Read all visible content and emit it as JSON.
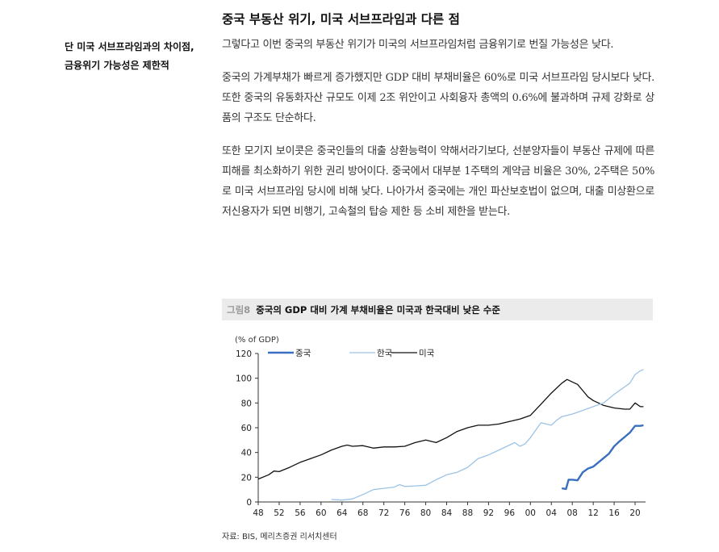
{
  "sidebar": {
    "lines": [
      "단 미국 서브프라임과의 차이점,",
      "금융위기 가능성은 제한적"
    ]
  },
  "main": {
    "title": "중국 부동산 위기, 미국 서브프라임과 다른 점",
    "paragraphs": [
      "그렇다고 이번 중국의 부동산 위기가 미국의 서브프라임처럼 금융위기로 번질 가능성은 낮다.",
      "중국의 가계부채가 빠르게 증가했지만 GDP 대비 부채비율은 60%로 미국 서브프라임 당시보다 낮다. 또한 중국의 유동화자산 규모도 이제 2조 위안이고 사회융자 총액의 0.6%에 불과하며 규제 강화로 상품의 구조도 단순하다.",
      "또한 모기지 보이콧은 중국인들의 대출 상환능력이 약해서라기보다, 선분양자들이 부동산 규제에 따른 피해를 최소화하기 위한 권리 방어이다. 중국에서 대부분 1주택의 계약금 비율은 30%, 2주택은 50%로 미국 서브프라임 당시에 비해 낮다. 나아가서 중국에는 개인 파산보호법이 없으며, 대출 미상환으로 저신용자가 되면 비행기, 고속철의 탑승 제한 등 소비 제한을 받는다."
    ]
  },
  "figure": {
    "label": "그림8",
    "title": "중국의 GDP 대비 가계 부채비율은 미국과 한국대비 낮은 수준",
    "source": "자료: BIS, 메리츠증권 리서치센터"
  },
  "chart_data": {
    "type": "line",
    "ylabel": "(% of GDP)",
    "ylim": [
      0,
      120
    ],
    "yticks": [
      0,
      20,
      40,
      60,
      80,
      100,
      120
    ],
    "xlim": [
      1948,
      2022
    ],
    "xticks": [
      1948,
      1952,
      1956,
      1960,
      1964,
      1968,
      1972,
      1976,
      1980,
      1984,
      1988,
      1992,
      1996,
      2000,
      2004,
      2008,
      2012,
      2016,
      2020
    ],
    "xtick_labels": [
      "48",
      "52",
      "56",
      "60",
      "64",
      "68",
      "72",
      "76",
      "80",
      "84",
      "88",
      "92",
      "96",
      "00",
      "04",
      "08",
      "12",
      "16",
      "20"
    ],
    "legend_position": "top-left",
    "series": [
      {
        "name": "중국",
        "color": "#3a6fc0",
        "points": [
          [
            2006,
            11
          ],
          [
            2006.8,
            10.5
          ],
          [
            2007.3,
            18
          ],
          [
            2008,
            18
          ],
          [
            2009,
            17.5
          ],
          [
            2010,
            24
          ],
          [
            2011,
            27
          ],
          [
            2012,
            28.5
          ],
          [
            2013,
            32
          ],
          [
            2014,
            35.5
          ],
          [
            2015,
            39
          ],
          [
            2016,
            45
          ],
          [
            2017,
            49
          ],
          [
            2018,
            52.5
          ],
          [
            2019,
            56
          ],
          [
            2020,
            61.5
          ],
          [
            2021,
            61.5
          ],
          [
            2021.6,
            62
          ]
        ]
      },
      {
        "name": "한국",
        "color": "#9cc3e6",
        "points": [
          [
            1962,
            2
          ],
          [
            1964,
            1.5
          ],
          [
            1966,
            2.5
          ],
          [
            1968,
            6
          ],
          [
            1970,
            10
          ],
          [
            1972,
            11
          ],
          [
            1974,
            12
          ],
          [
            1975,
            14
          ],
          [
            1976,
            12.5
          ],
          [
            1978,
            13
          ],
          [
            1980,
            13.5
          ],
          [
            1982,
            18
          ],
          [
            1984,
            22
          ],
          [
            1986,
            24
          ],
          [
            1988,
            28
          ],
          [
            1990,
            35
          ],
          [
            1992,
            38
          ],
          [
            1994,
            42
          ],
          [
            1996,
            46
          ],
          [
            1997,
            48
          ],
          [
            1998,
            45
          ],
          [
            1999,
            47
          ],
          [
            2000,
            52
          ],
          [
            2001,
            58
          ],
          [
            2002,
            64
          ],
          [
            2003,
            63
          ],
          [
            2004,
            62
          ],
          [
            2005,
            66
          ],
          [
            2006,
            69
          ],
          [
            2007,
            70
          ],
          [
            2008,
            71
          ],
          [
            2010,
            74
          ],
          [
            2012,
            77
          ],
          [
            2014,
            80
          ],
          [
            2016,
            87
          ],
          [
            2018,
            93
          ],
          [
            2019,
            96
          ],
          [
            2020,
            103
          ],
          [
            2021,
            106
          ],
          [
            2021.6,
            107
          ]
        ]
      },
      {
        "name": "미국",
        "color": "#111111",
        "points": [
          [
            1948,
            18.5
          ],
          [
            1950,
            22
          ],
          [
            1951,
            25
          ],
          [
            1952,
            24.5
          ],
          [
            1954,
            28
          ],
          [
            1956,
            32
          ],
          [
            1958,
            35
          ],
          [
            1960,
            38
          ],
          [
            1962,
            42
          ],
          [
            1964,
            45
          ],
          [
            1965,
            46
          ],
          [
            1966,
            45
          ],
          [
            1968,
            45.5
          ],
          [
            1970,
            43.5
          ],
          [
            1972,
            44.5
          ],
          [
            1974,
            44.5
          ],
          [
            1976,
            45
          ],
          [
            1978,
            48
          ],
          [
            1980,
            50
          ],
          [
            1982,
            48
          ],
          [
            1984,
            52
          ],
          [
            1986,
            57
          ],
          [
            1988,
            60
          ],
          [
            1990,
            62
          ],
          [
            1992,
            62
          ],
          [
            1994,
            63
          ],
          [
            1996,
            65
          ],
          [
            1998,
            67
          ],
          [
            2000,
            70
          ],
          [
            2002,
            79
          ],
          [
            2004,
            88
          ],
          [
            2006,
            96
          ],
          [
            2007,
            99
          ],
          [
            2008,
            97
          ],
          [
            2009,
            95
          ],
          [
            2010,
            90
          ],
          [
            2011,
            85
          ],
          [
            2012,
            82
          ],
          [
            2013,
            80
          ],
          [
            2014,
            78
          ],
          [
            2016,
            76
          ],
          [
            2018,
            75
          ],
          [
            2019,
            75
          ],
          [
            2020,
            80
          ],
          [
            2021,
            77
          ],
          [
            2021.6,
            77
          ]
        ]
      }
    ]
  }
}
